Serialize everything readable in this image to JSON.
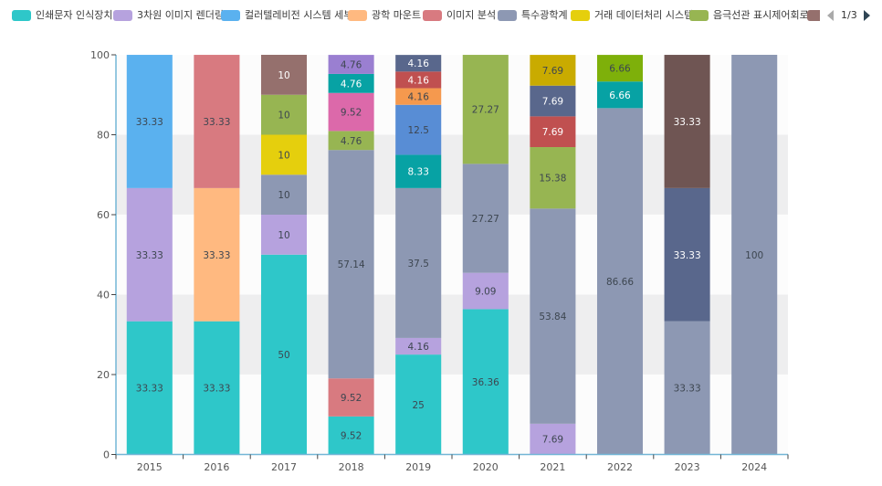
{
  "legend": {
    "items": [
      {
        "name": "인쇄문자 인식장치",
        "color": "#2ec7c9"
      },
      {
        "name": "3차원 이미지 렌더링",
        "color": "#b6a2de"
      },
      {
        "name": "컬러텔레비전 시스템 세부",
        "color": "#5ab1ef"
      },
      {
        "name": "광학 마운트",
        "color": "#ffb980"
      },
      {
        "name": "이미지 분석",
        "color": "#d87a80"
      },
      {
        "name": "특수광학계",
        "color": "#8d98b3"
      },
      {
        "name": "거래 데이터처리 시스템",
        "color": "#e5cf0d"
      },
      {
        "name": "음극선관 표시제어회로",
        "color": "#97b552"
      },
      {
        "name": "",
        "color": "#95706d"
      }
    ],
    "pager": {
      "text": "1/3",
      "prev_icon": "triangle-left-icon",
      "next_icon": "triangle-right-icon",
      "prev_enabled": false,
      "next_enabled": true
    }
  },
  "chart_data": {
    "type": "bar",
    "stacked": true,
    "title": "",
    "xlabel": "",
    "ylabel": "",
    "categories": [
      "2015",
      "2016",
      "2017",
      "2018",
      "2019",
      "2020",
      "2021",
      "2022",
      "2023",
      "2024"
    ],
    "ylim": [
      0,
      100
    ],
    "yticks": [
      0,
      20,
      40,
      60,
      80,
      100
    ],
    "grid": "alternating horizontal bands",
    "legend_position": "top",
    "data_labels": true,
    "series": [
      {
        "name": "인쇄문자 인식장치",
        "color": "#2ec7c9",
        "label_color": "#3d4650",
        "values": [
          33.33,
          33.33,
          50,
          9.52,
          25,
          36.36,
          null,
          null,
          null,
          null
        ]
      },
      {
        "name": "3차원 이미지 렌더링",
        "color": "#b6a2de",
        "label_color": "#3d4650",
        "values": [
          33.33,
          null,
          10,
          null,
          4.16,
          9.09,
          7.69,
          null,
          null,
          null
        ]
      },
      {
        "name": "컬러텔레비전 시스템 세부",
        "color": "#5ab1ef",
        "label_color": "#3d4650",
        "values": [
          33.33,
          null,
          null,
          null,
          null,
          null,
          null,
          null,
          null,
          null
        ]
      },
      {
        "name": "광학 마운트",
        "color": "#ffb980",
        "label_color": "#3d4650",
        "values": [
          null,
          33.33,
          null,
          null,
          null,
          null,
          null,
          null,
          null,
          null
        ]
      },
      {
        "name": "이미지 분석",
        "color": "#d87a80",
        "label_color": "#3d4650",
        "values": [
          null,
          33.33,
          null,
          9.52,
          null,
          null,
          null,
          null,
          null,
          null
        ]
      },
      {
        "name": "특수광학계",
        "color": "#8d98b3",
        "label_color": "#3d4650",
        "values": [
          null,
          null,
          10,
          57.14,
          37.5,
          27.27,
          53.84,
          86.66,
          33.33,
          100
        ]
      },
      {
        "name": "거래 데이터처리 시스템",
        "color": "#e5cf0d",
        "label_color": "#3d4650",
        "values": [
          null,
          null,
          10,
          null,
          null,
          null,
          null,
          null,
          null,
          null
        ]
      },
      {
        "name": "음극선관 표시제어회로",
        "color": "#97b552",
        "label_color": "#3d4650",
        "values": [
          null,
          null,
          10,
          4.76,
          null,
          27.27,
          15.38,
          null,
          null,
          null
        ]
      },
      {
        "name": "",
        "color": "#95706d",
        "label_color": "#ffffff",
        "values": [
          null,
          null,
          10,
          null,
          null,
          null,
          null,
          null,
          null,
          null
        ]
      },
      {
        "name": "",
        "color": "#dc69aa",
        "label_color": "#3d4650",
        "values": [
          null,
          null,
          null,
          9.52,
          null,
          null,
          null,
          null,
          null,
          null
        ]
      },
      {
        "name": "",
        "color": "#07a2a4",
        "label_color": "#ffffff",
        "values": [
          null,
          null,
          null,
          4.76,
          8.33,
          null,
          null,
          6.66,
          null,
          null
        ]
      },
      {
        "name": "",
        "color": "#9a7fd1",
        "label_color": "#3d4650",
        "values": [
          null,
          null,
          null,
          4.76,
          null,
          null,
          null,
          null,
          null,
          null
        ]
      },
      {
        "name": "",
        "color": "#588dd5",
        "label_color": "#3d4650",
        "values": [
          null,
          null,
          null,
          null,
          12.5,
          null,
          null,
          null,
          null,
          null
        ]
      },
      {
        "name": "",
        "color": "#f5994e",
        "label_color": "#3d4650",
        "values": [
          null,
          null,
          null,
          null,
          4.16,
          null,
          null,
          null,
          null,
          null
        ]
      },
      {
        "name": "",
        "color": "#c05050",
        "label_color": "#ffffff",
        "values": [
          null,
          null,
          null,
          null,
          4.16,
          null,
          7.69,
          null,
          null,
          null
        ]
      },
      {
        "name": "",
        "color": "#59678c",
        "label_color": "#ffffff",
        "values": [
          null,
          null,
          null,
          null,
          4.16,
          null,
          7.69,
          null,
          33.33,
          null
        ]
      },
      {
        "name": "",
        "color": "#c9ab00",
        "label_color": "#3d4650",
        "values": [
          null,
          null,
          null,
          null,
          null,
          null,
          7.69,
          null,
          null,
          null
        ]
      },
      {
        "name": "",
        "color": "#7eb00a",
        "label_color": "#3d4650",
        "values": [
          null,
          null,
          null,
          null,
          null,
          null,
          null,
          6.66,
          null,
          null
        ]
      },
      {
        "name": "",
        "color": "#6f5553",
        "label_color": "#ffffff",
        "values": [
          null,
          null,
          null,
          null,
          null,
          null,
          null,
          null,
          33.33,
          null
        ]
      }
    ]
  }
}
